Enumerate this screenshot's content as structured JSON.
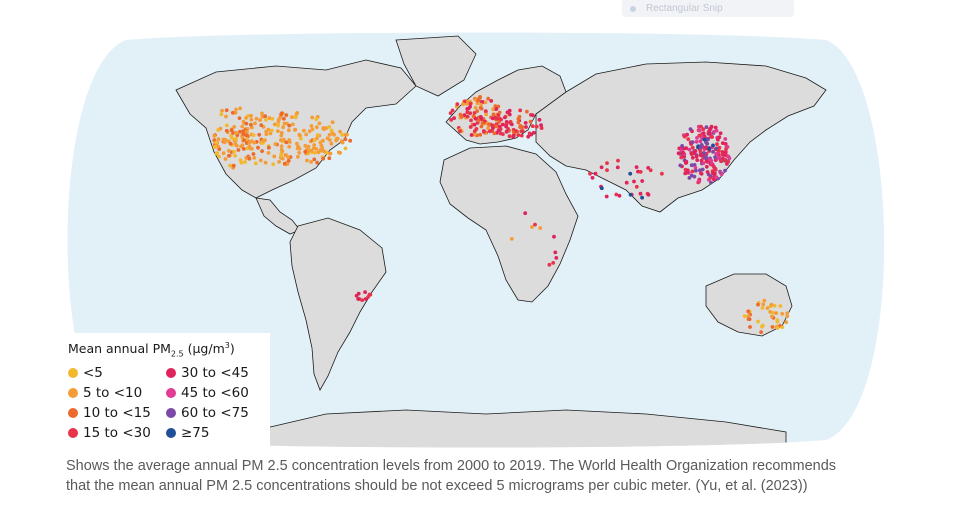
{
  "snip_tool": {
    "label": "Rectangular Snip"
  },
  "legend": {
    "title_main": "Mean annual PM",
    "title_subscript": "2.5",
    "title_unit_open": " (μg/m",
    "title_unit_sup": "3",
    "title_unit_close": ")",
    "items": [
      {
        "label": "<5",
        "color": "#f2b92f"
      },
      {
        "label": "30 to <45",
        "color": "#e0245b"
      },
      {
        "label": "5 to <10",
        "color": "#f49d38"
      },
      {
        "label": "45 to <60",
        "color": "#e13b93"
      },
      {
        "label": "10 to <15",
        "color": "#ec6a2c"
      },
      {
        "label": "60 to <75",
        "color": "#7d49a6"
      },
      {
        "label": "15 to <30",
        "color": "#e8334a"
      },
      {
        "label": "≥75",
        "color": "#1f4f96"
      }
    ]
  },
  "caption": "Shows the average annual PM 2.5 concentration levels from 2000 to 2019. The World Health Organization recommends that the mean annual PM 2.5 concentrations should be not exceed 5 micrograms per cubic meter. (Yu, et al. (2023))",
  "colors": {
    "ocean": "#e2f1f8",
    "land": "#dcdcdc",
    "border": "#1b1b1b"
  }
}
